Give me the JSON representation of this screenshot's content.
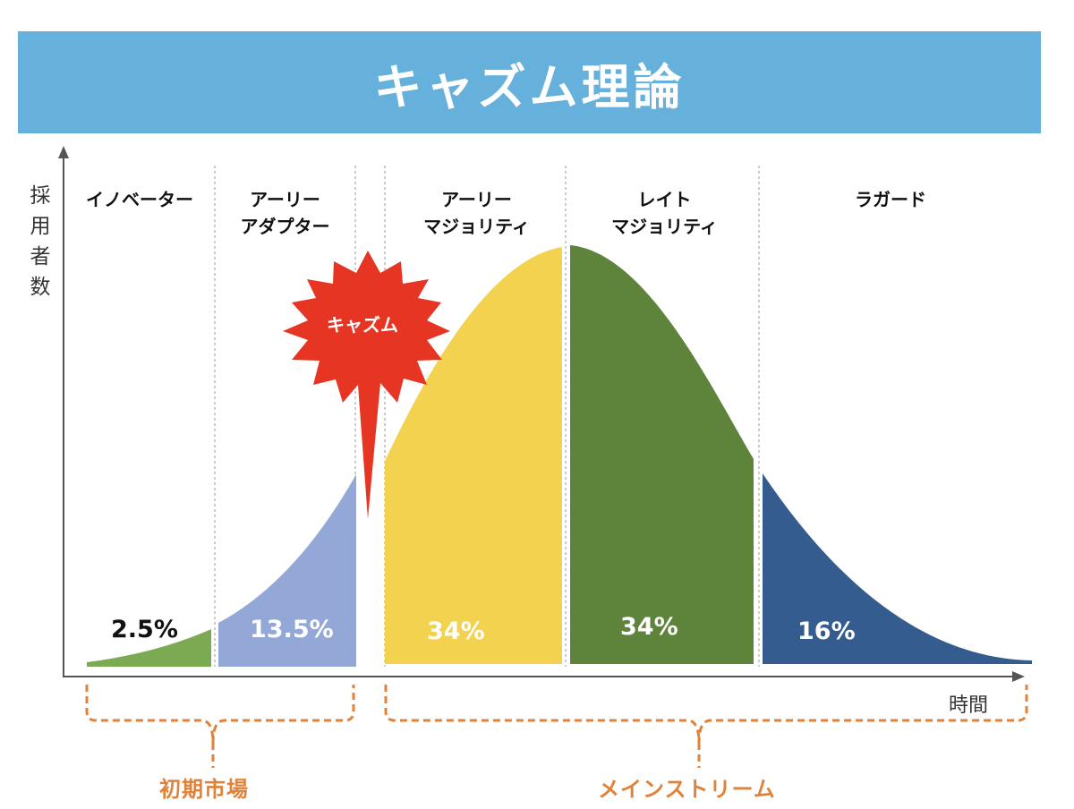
{
  "title": "キャズム理論",
  "y_axis_label": "採\n用\n者\n数",
  "x_axis_label": "時間",
  "chasm_label": "キャズム",
  "segments": [
    {
      "label": "イノベーター",
      "percent": "2.5%",
      "color": "#7caa52"
    },
    {
      "label": "アーリー\nアダプター",
      "percent": "13.5%",
      "color": "#94a8d8"
    },
    {
      "label": "アーリー\nマジョリティ",
      "percent": "34%",
      "color": "#f2d24e"
    },
    {
      "label": "レイト\nマジョリティ",
      "percent": "34%",
      "color": "#5e843c"
    },
    {
      "label": "ラガード",
      "percent": "16%",
      "color": "#345c8e"
    }
  ],
  "groups": {
    "early_market": "初期市場",
    "mainstream": "メインストリーム"
  },
  "colors": {
    "banner": "#66b1dc",
    "chasm": "#e73523",
    "brace": "#e0823a",
    "axis": "#555555"
  }
}
